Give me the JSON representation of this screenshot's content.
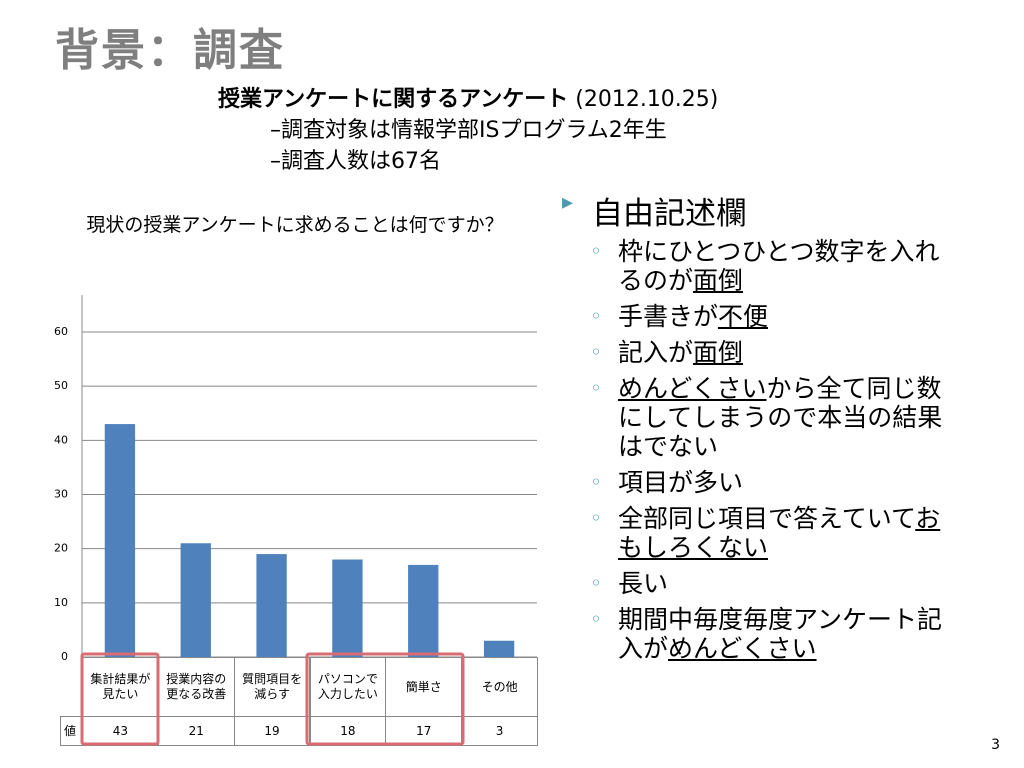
{
  "title": "背景：調査",
  "survey": {
    "name": "授業アンケートに関するアンケート",
    "date": "(2012.10.25)",
    "items": [
      "–調査対象は情報学部ISプログラム2年生",
      "–調査人数は67名"
    ]
  },
  "chart_data": {
    "type": "bar",
    "title": "現状の授業アンケートに求めることは何ですか？",
    "categories": [
      "集計結果が見たい",
      "授業内容の更なる改善",
      "質問項目を減らす",
      "パソコンで入力したい",
      "簡単さ",
      "その他"
    ],
    "values": [
      43,
      21,
      19,
      18,
      17,
      3
    ],
    "series_label": "値",
    "color": "#4f81bd",
    "ylim": [
      0,
      60
    ],
    "yticks": [
      0,
      10,
      20,
      30,
      40,
      50,
      60
    ],
    "grid": true
  },
  "notes": {
    "heading": "自由記述欄",
    "items": [
      [
        {
          "text": "枠にひとつひとつ数字を入れるのが"
        },
        {
          "text": "面倒",
          "underline": true
        }
      ],
      [
        {
          "text": "手書きが"
        },
        {
          "text": "不便",
          "underline": true
        }
      ],
      [
        {
          "text": "記入が"
        },
        {
          "text": "面倒",
          "underline": true
        }
      ],
      [
        {
          "text": "めんどくさい",
          "underline": true
        },
        {
          "text": "から全て同じ数にしてしまうので本当の結果はでない"
        }
      ],
      [
        {
          "text": "項目が多い"
        }
      ],
      [
        {
          "text": "全部同じ項目で答えていて"
        },
        {
          "text": "おもしろくない",
          "underline": true
        }
      ],
      [
        {
          "text": "長い"
        }
      ],
      [
        {
          "text": "期間中毎度毎度アンケート記入が"
        },
        {
          "text": "めんどくさい",
          "underline": true
        }
      ]
    ]
  },
  "page_number": "3"
}
